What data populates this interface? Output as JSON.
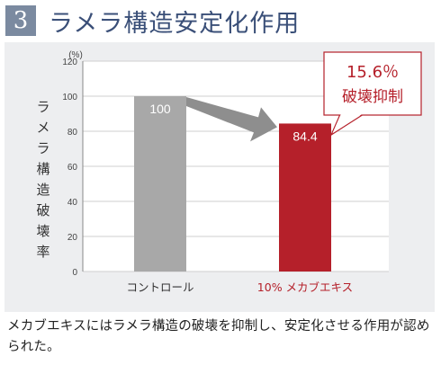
{
  "header": {
    "number": "3",
    "title": "ラメラ構造安定化作用"
  },
  "chart_data": {
    "type": "bar",
    "categories": [
      "コントロール",
      "10% メカブエキス"
    ],
    "values": [
      100,
      84.4
    ],
    "value_labels": [
      "100",
      "84.4"
    ],
    "ylabel": "ラメラ構造破壊率",
    "yunit": "(%)",
    "ylim": [
      0,
      120
    ],
    "yticks": [
      "0",
      "20",
      "40",
      "60",
      "80",
      "100",
      "120"
    ],
    "grid": true,
    "bar_colors": [
      "#a8a8a8",
      "#b5202a"
    ],
    "category_colors": [
      "#333333",
      "#b5202a"
    ],
    "callout": {
      "line1": "15.6％",
      "line2": "破壊抑制"
    }
  },
  "caption": "メカブエキスにはラメラ構造の破壊を抑制し、安定化させる作用が認められた。"
}
